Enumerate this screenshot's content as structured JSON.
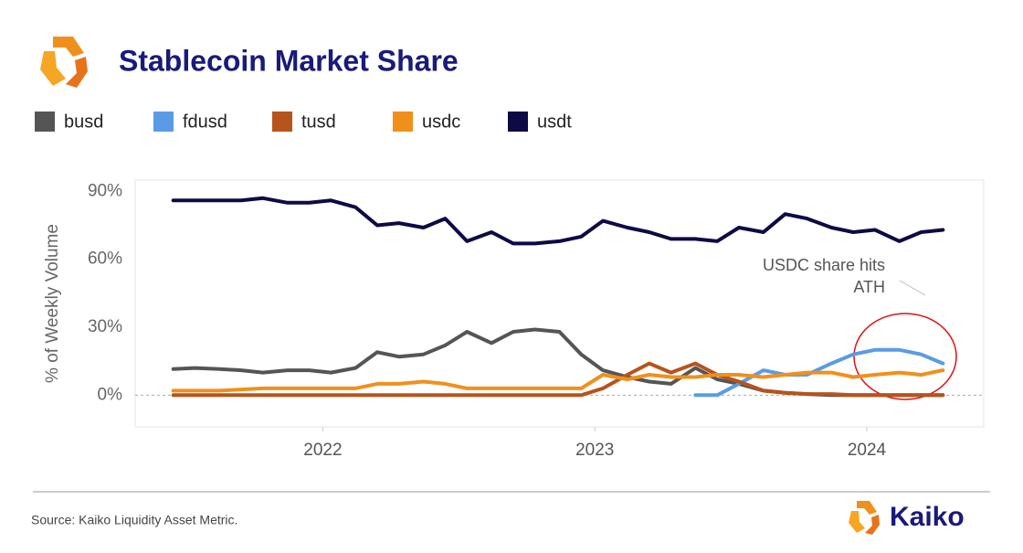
{
  "chart_data": {
    "type": "line",
    "title": "Stablecoin Market Share",
    "ylabel": "% of Weekly Volume",
    "source": "Source: Kaiko Liquidity Asset Metric.",
    "brand": "Kaiko",
    "annotation": [
      "USDC share hits",
      "ATH"
    ],
    "x": [
      2021.45,
      2021.53,
      2021.62,
      2021.7,
      2021.78,
      2021.87,
      2021.95,
      2022.03,
      2022.12,
      2022.2,
      2022.28,
      2022.37,
      2022.45,
      2022.53,
      2022.62,
      2022.7,
      2022.78,
      2022.87,
      2022.95,
      2023.03,
      2023.12,
      2023.2,
      2023.28,
      2023.37,
      2023.45,
      2023.53,
      2023.62,
      2023.7,
      2023.78,
      2023.87,
      2023.95,
      2024.03,
      2024.12,
      2024.2,
      2024.28
    ],
    "xlim": [
      2021.31,
      2024.43
    ],
    "xticks": [
      2022,
      2023,
      2024
    ],
    "ylim": [
      -14,
      95
    ],
    "yticks": [
      {
        "value": 0,
        "label": "0%"
      },
      {
        "value": 30,
        "label": "30%"
      },
      {
        "value": 60,
        "label": "60%"
      },
      {
        "value": 90,
        "label": "90%"
      }
    ],
    "grid": false,
    "series": [
      {
        "name": "busd",
        "color": "#555555",
        "values": [
          11.5,
          12,
          11.5,
          11,
          10,
          11,
          11,
          10,
          12,
          19,
          17,
          18,
          22,
          28,
          23,
          28,
          29,
          28,
          18,
          11,
          8,
          6,
          5,
          12,
          7,
          5,
          2,
          1,
          0.5,
          0,
          0,
          0,
          0,
          0,
          0
        ]
      },
      {
        "name": "fdusd",
        "color": "#5b9be6",
        "values": [
          null,
          null,
          null,
          null,
          null,
          null,
          null,
          null,
          null,
          null,
          null,
          null,
          null,
          null,
          null,
          null,
          null,
          null,
          null,
          null,
          null,
          null,
          null,
          0,
          0,
          5,
          11,
          9,
          9,
          14,
          18,
          20,
          20,
          18,
          14
        ]
      },
      {
        "name": "tusd",
        "color": "#b5541c",
        "values": [
          0,
          0,
          0,
          0,
          0,
          0,
          0,
          0,
          0,
          0,
          0,
          0,
          0,
          0,
          0,
          0,
          0,
          0,
          0,
          3,
          9,
          14,
          10,
          14,
          9,
          6,
          2,
          1,
          0.5,
          0.5,
          0,
          0,
          0,
          0,
          0
        ]
      },
      {
        "name": "usdc",
        "color": "#f0901c",
        "values": [
          2,
          2,
          2,
          2.5,
          3,
          3,
          3,
          3,
          3,
          5,
          5,
          6,
          5,
          3,
          3,
          3,
          3,
          3,
          3,
          9,
          7,
          9,
          8,
          8,
          9,
          9,
          8,
          9,
          10,
          10,
          8,
          9,
          10,
          9,
          11
        ]
      },
      {
        "name": "usdt",
        "color": "#0d0a45",
        "values": [
          86,
          86,
          86,
          86,
          87,
          85,
          85,
          86,
          83,
          75,
          76,
          74,
          78,
          68,
          72,
          67,
          67,
          68,
          70,
          77,
          74,
          72,
          69,
          69,
          68,
          74,
          72,
          80,
          78,
          74,
          72,
          73,
          68,
          72,
          73
        ]
      }
    ]
  }
}
